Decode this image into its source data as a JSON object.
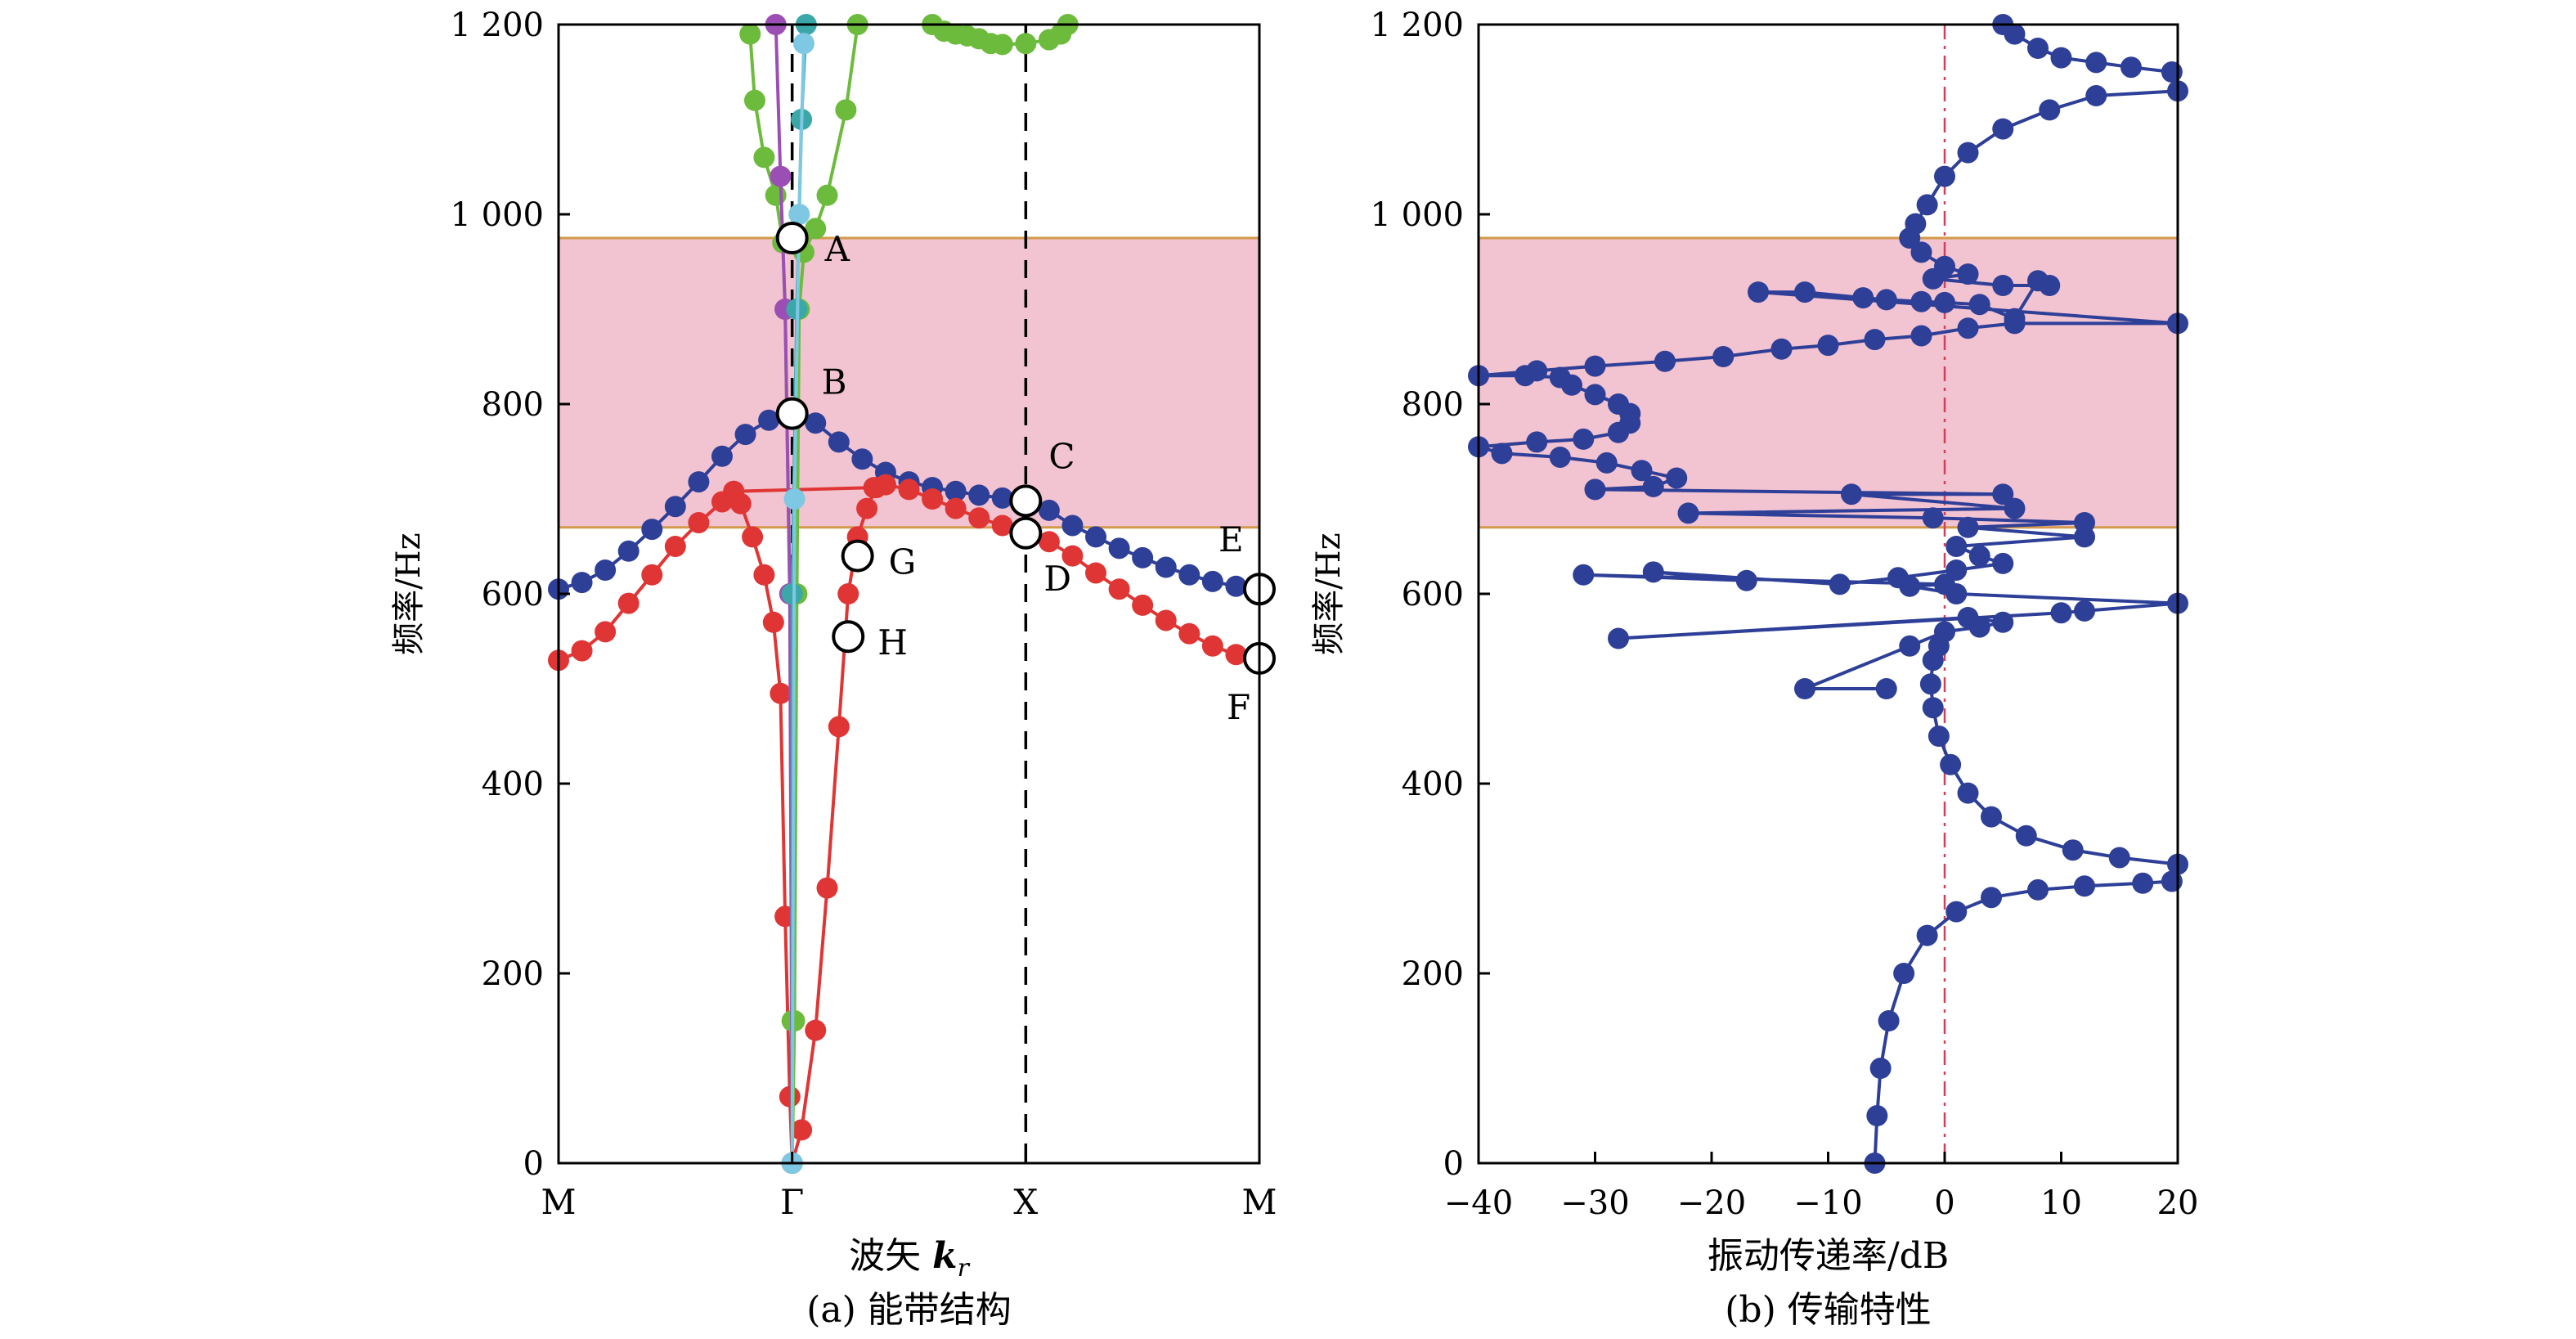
{
  "chart_data": [
    {
      "type": "line",
      "panel": "a",
      "caption": "(a) 能带结构",
      "xlabel_text": "波矢 ",
      "xlabel_var": "k",
      "xlabel_sub": "r",
      "ylabel": "频率/Hz",
      "x_ticks": [
        "M",
        "Γ",
        "X",
        "M"
      ],
      "x_positions": [
        0,
        1,
        2,
        3
      ],
      "ylim": [
        0,
        1200
      ],
      "y_ticks": [
        0,
        200,
        400,
        600,
        800,
        1000,
        1200
      ],
      "y_tick_labels": [
        "0",
        "200",
        "400",
        "600",
        "800",
        "1 000",
        "1 200"
      ],
      "band_gap": [
        670,
        975
      ],
      "band_gap_color": "#f2c3d0",
      "band_gap_edge_color": "#d29a4a",
      "dashed_verticals": [
        1,
        2
      ],
      "series": [
        {
          "color": "#2e3f98",
          "points": [
            [
              0,
              605
            ],
            [
              0.1,
              612
            ],
            [
              0.2,
              625
            ],
            [
              0.3,
              645
            ],
            [
              0.4,
              668
            ],
            [
              0.5,
              692
            ],
            [
              0.6,
              718
            ],
            [
              0.7,
              745
            ],
            [
              0.8,
              768
            ],
            [
              0.9,
              783
            ],
            [
              1.0,
              790
            ],
            [
              1.1,
              780
            ],
            [
              1.2,
              760
            ],
            [
              1.3,
              742
            ],
            [
              1.4,
              728
            ],
            [
              1.5,
              718
            ],
            [
              1.6,
              712
            ],
            [
              1.7,
              708
            ],
            [
              1.8,
              704
            ],
            [
              1.9,
              701
            ],
            [
              2.0,
              698
            ],
            [
              2.1,
              688
            ],
            [
              2.2,
              672
            ],
            [
              2.3,
              660
            ],
            [
              2.4,
              648
            ],
            [
              2.5,
              638
            ],
            [
              2.6,
              628
            ],
            [
              2.7,
              620
            ],
            [
              2.8,
              613
            ],
            [
              2.9,
              608
            ],
            [
              3.0,
              605
            ]
          ]
        },
        {
          "color": "#e03535",
          "points": [
            [
              0,
              530
            ],
            [
              0.1,
              540
            ],
            [
              0.2,
              560
            ],
            [
              0.3,
              590
            ],
            [
              0.4,
              620
            ],
            [
              0.5,
              650
            ],
            [
              0.6,
              675
            ],
            [
              0.7,
              697
            ],
            [
              0.75,
              708
            ],
            [
              1.35,
              712
            ],
            [
              1.4,
              715
            ],
            [
              1.5,
              710
            ],
            [
              1.6,
              700
            ],
            [
              1.7,
              690
            ],
            [
              1.8,
              680
            ],
            [
              1.9,
              672
            ],
            [
              2.0,
              664
            ],
            [
              2.1,
              655
            ],
            [
              2.2,
              640
            ],
            [
              2.3,
              622
            ],
            [
              2.4,
              605
            ],
            [
              2.5,
              588
            ],
            [
              2.6,
              572
            ],
            [
              2.7,
              558
            ],
            [
              2.8,
              545
            ],
            [
              2.9,
              536
            ],
            [
              3.0,
              532
            ]
          ]
        },
        {
          "color": "#e03535",
          "points": [
            [
              1.0,
              0
            ],
            [
              0.99,
              70
            ],
            [
              0.97,
              260
            ],
            [
              0.95,
              495
            ],
            [
              0.92,
              570
            ],
            [
              0.88,
              620
            ],
            [
              0.83,
              660
            ],
            [
              0.78,
              695
            ],
            [
              0.75,
              708
            ]
          ]
        },
        {
          "color": "#e03535",
          "points": [
            [
              1.0,
              0
            ],
            [
              1.04,
              35
            ],
            [
              1.1,
              140
            ],
            [
              1.15,
              290
            ],
            [
              1.2,
              460
            ],
            [
              1.24,
              600
            ],
            [
              1.28,
              660
            ],
            [
              1.32,
              690
            ],
            [
              1.36,
              712
            ]
          ]
        },
        {
          "color": "#6cbb3c",
          "points": [
            [
              1.0,
              0
            ],
            [
              1.0,
              150
            ],
            [
              0.99,
              600
            ],
            [
              0.97,
              900
            ],
            [
              0.96,
              970
            ],
            [
              0.93,
              1020
            ],
            [
              0.88,
              1060
            ],
            [
              0.84,
              1120
            ],
            [
              0.82,
              1190
            ]
          ]
        },
        {
          "color": "#6cbb3c",
          "points": [
            [
              1.0,
              0
            ],
            [
              1.01,
              150
            ],
            [
              1.02,
              600
            ],
            [
              1.03,
              900
            ],
            [
              1.05,
              960
            ],
            [
              1.1,
              985
            ],
            [
              1.15,
              1020
            ],
            [
              1.23,
              1110
            ],
            [
              1.28,
              1200
            ]
          ]
        },
        {
          "color": "#6cbb3c",
          "points": [
            [
              1.6,
              1200
            ],
            [
              1.65,
              1193
            ],
            [
              1.7,
              1190
            ],
            [
              1.75,
              1188
            ],
            [
              1.8,
              1185
            ],
            [
              1.85,
              1180
            ],
            [
              1.9,
              1179
            ],
            [
              2.0,
              1180
            ],
            [
              2.1,
              1184
            ],
            [
              2.15,
              1190
            ],
            [
              2.18,
              1200
            ]
          ]
        },
        {
          "color": "#9b4fb5",
          "points": [
            [
              1.0,
              0
            ],
            [
              0.99,
              600
            ],
            [
              0.97,
              900
            ],
            [
              0.95,
              1040
            ],
            [
              0.93,
              1200
            ]
          ]
        },
        {
          "color": "#3ba7a8",
          "points": [
            [
              1.0,
              0
            ],
            [
              1.0,
              600
            ],
            [
              1.02,
              900
            ],
            [
              1.04,
              1100
            ],
            [
              1.06,
              1200
            ]
          ]
        },
        {
          "color": "#7ec8e3",
          "points": [
            [
              1.0,
              0
            ],
            [
              1.01,
              700
            ],
            [
              1.03,
              1000
            ],
            [
              1.05,
              1180
            ]
          ]
        }
      ],
      "annotations": [
        {
          "label": "A",
          "x": 1.0,
          "y": 975
        },
        {
          "label": "B",
          "x": 1.0,
          "y": 790
        },
        {
          "label": "C",
          "x": 2.0,
          "y": 698
        },
        {
          "label": "D",
          "x": 2.0,
          "y": 664
        },
        {
          "label": "E",
          "x": 3.0,
          "y": 605
        },
        {
          "label": "F",
          "x": 3.0,
          "y": 532
        },
        {
          "label": "G",
          "x": 1.28,
          "y": 640
        },
        {
          "label": "H",
          "x": 1.24,
          "y": 555
        }
      ]
    },
    {
      "type": "line",
      "panel": "b",
      "caption": "(b) 传输特性",
      "xlabel": "振动传递率/dB",
      "ylabel": "频率/Hz",
      "xlim": [
        -40,
        20
      ],
      "x_ticks": [
        -40,
        -30,
        -20,
        -10,
        0,
        10,
        20
      ],
      "x_tick_labels": [
        "−40",
        "−30",
        "−20",
        "−10",
        "0",
        "10",
        "20"
      ],
      "ylim": [
        0,
        1200
      ],
      "y_ticks": [
        0,
        200,
        400,
        600,
        800,
        1000,
        1200
      ],
      "y_tick_labels": [
        "0",
        "200",
        "400",
        "600",
        "800",
        "1 000",
        "1 200"
      ],
      "band_gap": [
        670,
        975
      ],
      "zero_line_color": "#d0405a",
      "series": [
        {
          "color": "#2e3f98",
          "points": [
            [
              -6,
              0
            ],
            [
              -5.8,
              50
            ],
            [
              -5.5,
              100
            ],
            [
              -4.8,
              150
            ],
            [
              -3.5,
              200
            ],
            [
              -1.5,
              240
            ],
            [
              1,
              265
            ],
            [
              4,
              280
            ],
            [
              8,
              288
            ],
            [
              12,
              292
            ],
            [
              17,
              295
            ],
            [
              19.5,
              297
            ]
          ]
        },
        {
          "color": "#2e3f98",
          "points": [
            [
              20,
              315
            ],
            [
              15,
              322
            ],
            [
              11,
              330
            ],
            [
              7,
              345
            ],
            [
              4,
              365
            ],
            [
              2,
              390
            ],
            [
              0.5,
              420
            ],
            [
              -0.5,
              450
            ],
            [
              -1,
              480
            ],
            [
              -1.2,
              505
            ],
            [
              -1,
              530
            ],
            [
              -0.5,
              545
            ]
          ]
        },
        {
          "color": "#2e3f98",
          "points": [
            [
              -5,
              500
            ],
            [
              -12,
              500
            ],
            [
              -3,
              545
            ],
            [
              0,
              560
            ],
            [
              3,
              565
            ],
            [
              5,
              570
            ],
            [
              2,
              575
            ],
            [
              -28,
              553
            ],
            [
              10,
              580
            ],
            [
              12,
              582
            ],
            [
              20,
              590
            ],
            [
              1,
              600
            ],
            [
              -3,
              608
            ],
            [
              0,
              610
            ],
            [
              -31,
              620
            ],
            [
              -17,
              614
            ],
            [
              -25,
              623
            ],
            [
              -9,
              610
            ],
            [
              -4,
              617
            ],
            [
              1,
              625
            ],
            [
              5,
              632
            ],
            [
              3,
              640
            ],
            [
              1,
              650
            ],
            [
              12,
              660
            ],
            [
              2,
              670
            ],
            [
              12,
              675
            ],
            [
              -1,
              680
            ],
            [
              -22,
              685
            ],
            [
              6,
              690
            ],
            [
              -8,
              705
            ],
            [
              5,
              705
            ],
            [
              -30,
              710
            ],
            [
              -25,
              713
            ],
            [
              -23,
              722
            ],
            [
              -26,
              730
            ],
            [
              -29,
              738
            ],
            [
              -33,
              744
            ],
            [
              -38,
              748
            ],
            [
              -40,
              755
            ],
            [
              -35,
              760
            ],
            [
              -31,
              763
            ],
            [
              -28,
              770
            ],
            [
              -27,
              780
            ],
            [
              -27,
              790
            ],
            [
              -28,
              800
            ],
            [
              -30,
              810
            ],
            [
              -32,
              820
            ],
            [
              -33,
              828
            ],
            [
              -36,
              830
            ],
            [
              -40,
              830
            ],
            [
              -35,
              835
            ],
            [
              -30,
              840
            ],
            [
              -24,
              845
            ],
            [
              -19,
              850
            ],
            [
              -14,
              858
            ],
            [
              -10,
              862
            ],
            [
              -6,
              868
            ],
            [
              -2,
              872
            ],
            [
              2,
              880
            ],
            [
              6,
              885
            ],
            [
              20,
              885
            ],
            [
              -16,
              918
            ],
            [
              -12,
              918
            ],
            [
              -7,
              912
            ],
            [
              -5,
              910
            ],
            [
              -2,
              908
            ],
            [
              0,
              907
            ],
            [
              3,
              905
            ],
            [
              6,
              890
            ],
            [
              8,
              930
            ],
            [
              9,
              925
            ],
            [
              5,
              925
            ],
            [
              -1,
              932
            ],
            [
              2,
              937
            ],
            [
              0,
              945
            ],
            [
              -2,
              960
            ],
            [
              -3,
              975
            ],
            [
              -2.5,
              990
            ],
            [
              -1.5,
              1010
            ],
            [
              0,
              1040
            ],
            [
              2,
              1065
            ],
            [
              5,
              1090
            ],
            [
              9,
              1110
            ],
            [
              13,
              1125
            ],
            [
              20,
              1130
            ]
          ]
        },
        {
          "color": "#2e3f98",
          "points": [
            [
              19.5,
              1150
            ],
            [
              16,
              1155
            ],
            [
              13,
              1160
            ],
            [
              10,
              1165
            ],
            [
              8,
              1175
            ],
            [
              6,
              1190
            ],
            [
              5,
              1200
            ]
          ]
        }
      ]
    }
  ]
}
